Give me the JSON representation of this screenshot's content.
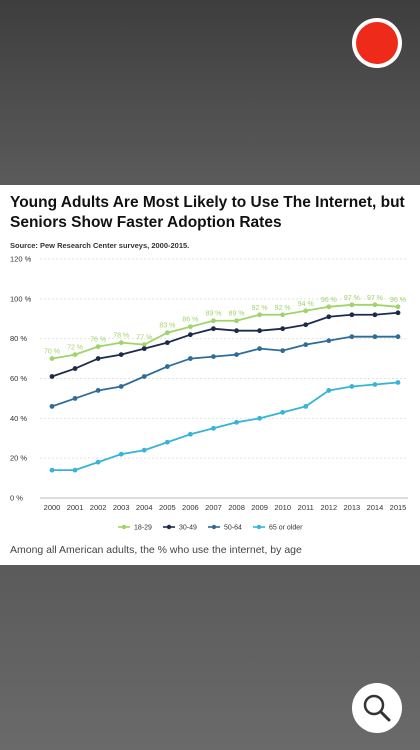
{
  "title": "Young Adults Are Most Likely to Use The Internet, but Seniors Show Faster Adoption Rates",
  "source": "Source: Pew Research Center surveys, 2000-2015.",
  "caption": "Among all American adults, the % who use the internet, by age",
  "colors": {
    "record": "#ee2a1b",
    "background": "#5a5a5a"
  },
  "icons": {
    "record": "record-icon",
    "zoom": "magnifier-icon"
  },
  "chart_data": {
    "type": "line",
    "x": [
      "2000",
      "2001",
      "2002",
      "2003",
      "2004",
      "2005",
      "2006",
      "2007",
      "2008",
      "2009",
      "2010",
      "2011",
      "2012",
      "2013",
      "2014",
      "2015"
    ],
    "yticks": [
      "0 %",
      "20 %",
      "40 %",
      "60 %",
      "80 %",
      "100 %",
      "120 %"
    ],
    "ylim": [
      0,
      120
    ],
    "grid": true,
    "legend_position": "bottom",
    "series": [
      {
        "name": "18-29",
        "color": "#9fd46a",
        "values": [
          70,
          72,
          76,
          78,
          77,
          83,
          86,
          89,
          89,
          92,
          92,
          94,
          96,
          97,
          97,
          96
        ],
        "labels": [
          "70 %",
          "72 %",
          "76 %",
          "78 %",
          "77 %",
          "83 %",
          "86 %",
          "89 %",
          "89 %",
          "92 %",
          "92 %",
          "94 %",
          "96 %",
          "97 %",
          "97 %",
          "96 %"
        ]
      },
      {
        "name": "30-49",
        "color": "#1c2b4a",
        "values": [
          61,
          65,
          70,
          72,
          75,
          78,
          82,
          85,
          84,
          84,
          85,
          87,
          91,
          92,
          92,
          93
        ]
      },
      {
        "name": "50-64",
        "color": "#2f6c98",
        "values": [
          46,
          50,
          54,
          56,
          61,
          66,
          70,
          71,
          72,
          75,
          74,
          77,
          79,
          81,
          81,
          81
        ]
      },
      {
        "name": "65 or older",
        "color": "#38b4d8",
        "values": [
          14,
          14,
          18,
          22,
          24,
          28,
          32,
          35,
          38,
          40,
          43,
          46,
          54,
          56,
          57,
          58
        ]
      }
    ]
  }
}
